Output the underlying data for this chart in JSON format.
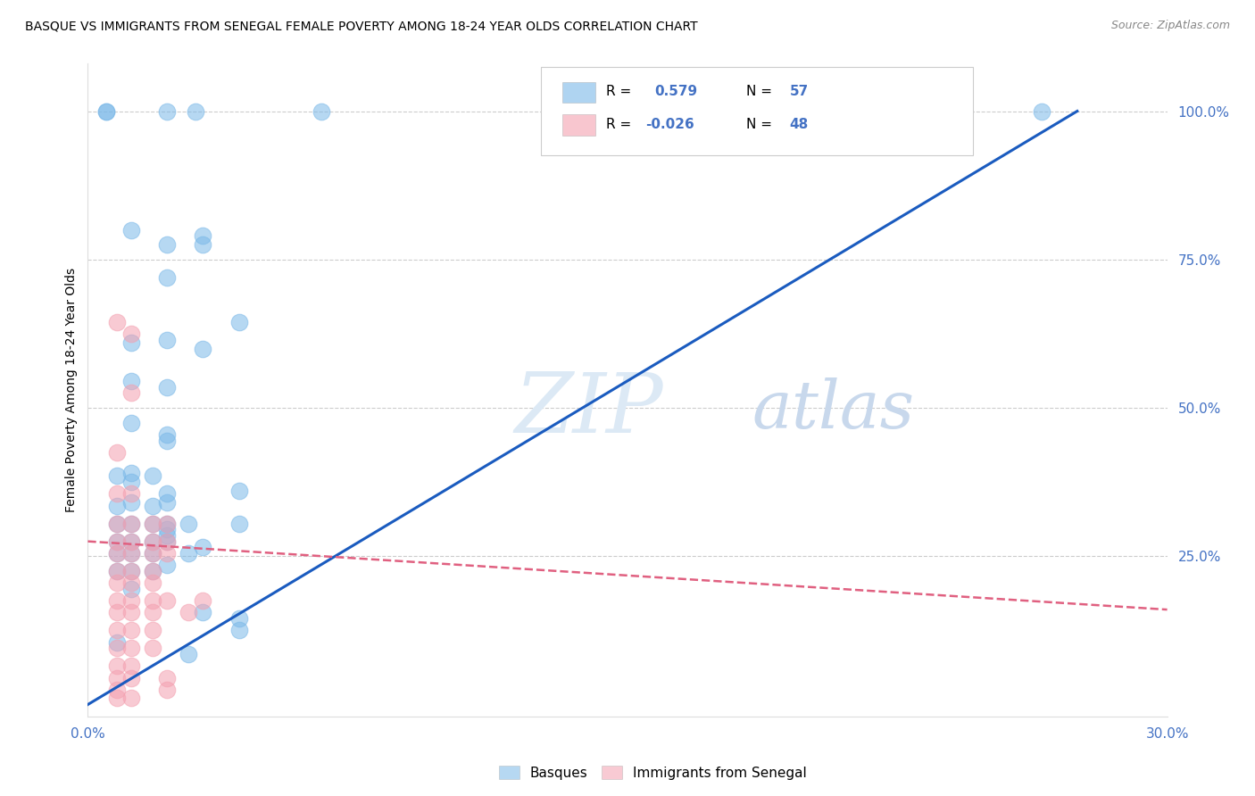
{
  "title": "BASQUE VS IMMIGRANTS FROM SENEGAL FEMALE POVERTY AMONG 18-24 YEAR OLDS CORRELATION CHART",
  "source": "Source: ZipAtlas.com",
  "ylabel": "Female Poverty Among 18-24 Year Olds",
  "xlabel": "",
  "xlim": [
    0.0,
    0.3
  ],
  "ylim": [
    -0.02,
    1.08
  ],
  "xticks": [
    0.0,
    0.05,
    0.1,
    0.15,
    0.2,
    0.25,
    0.3
  ],
  "xticklabels": [
    "0.0%",
    "",
    "",
    "",
    "",
    "",
    "30.0%"
  ],
  "yticks_right": [
    0.25,
    0.5,
    0.75,
    1.0
  ],
  "ytick_labels_right": [
    "25.0%",
    "50.0%",
    "75.0%",
    "100.0%"
  ],
  "basque_color": "#7ab8e8",
  "senegal_color": "#f4a0b0",
  "trendline_basque_color": "#1a5bbf",
  "trendline_senegal_color": "#e06080",
  "legend_R_basque": "R =  0.579",
  "legend_N_basque": "N = 57",
  "legend_R_senegal": "R = -0.026",
  "legend_N_senegal": "N = 48",
  "watermark_zip": "ZIP",
  "watermark_atlas": "atlas",
  "watermark_color_zip": "#d8e8f5",
  "watermark_color_atlas": "#c8d8e8",
  "grid_color": "#cccccc",
  "tick_color": "#4472c4",
  "basque_trendline": [
    [
      0.0,
      0.0
    ],
    [
      0.275,
      1.0
    ]
  ],
  "senegal_trendline": [
    [
      0.0,
      0.275
    ],
    [
      0.3,
      0.16
    ]
  ],
  "basque_points": [
    [
      0.005,
      1.0
    ],
    [
      0.005,
      1.0
    ],
    [
      0.022,
      1.0
    ],
    [
      0.03,
      1.0
    ],
    [
      0.065,
      1.0
    ],
    [
      0.265,
      1.0
    ],
    [
      0.012,
      0.8
    ],
    [
      0.022,
      0.775
    ],
    [
      0.032,
      0.79
    ],
    [
      0.032,
      0.775
    ],
    [
      0.022,
      0.72
    ],
    [
      0.042,
      0.645
    ],
    [
      0.012,
      0.61
    ],
    [
      0.022,
      0.615
    ],
    [
      0.032,
      0.6
    ],
    [
      0.012,
      0.545
    ],
    [
      0.022,
      0.535
    ],
    [
      0.012,
      0.475
    ],
    [
      0.022,
      0.455
    ],
    [
      0.022,
      0.445
    ],
    [
      0.008,
      0.385
    ],
    [
      0.012,
      0.39
    ],
    [
      0.018,
      0.385
    ],
    [
      0.012,
      0.375
    ],
    [
      0.008,
      0.335
    ],
    [
      0.012,
      0.34
    ],
    [
      0.018,
      0.335
    ],
    [
      0.022,
      0.34
    ],
    [
      0.022,
      0.355
    ],
    [
      0.042,
      0.36
    ],
    [
      0.008,
      0.305
    ],
    [
      0.012,
      0.305
    ],
    [
      0.018,
      0.305
    ],
    [
      0.022,
      0.305
    ],
    [
      0.028,
      0.305
    ],
    [
      0.042,
      0.305
    ],
    [
      0.008,
      0.275
    ],
    [
      0.012,
      0.275
    ],
    [
      0.018,
      0.275
    ],
    [
      0.022,
      0.275
    ],
    [
      0.022,
      0.285
    ],
    [
      0.022,
      0.295
    ],
    [
      0.008,
      0.255
    ],
    [
      0.012,
      0.255
    ],
    [
      0.018,
      0.255
    ],
    [
      0.028,
      0.255
    ],
    [
      0.032,
      0.265
    ],
    [
      0.008,
      0.225
    ],
    [
      0.012,
      0.225
    ],
    [
      0.018,
      0.225
    ],
    [
      0.022,
      0.235
    ],
    [
      0.012,
      0.195
    ],
    [
      0.032,
      0.155
    ],
    [
      0.042,
      0.145
    ],
    [
      0.042,
      0.125
    ],
    [
      0.008,
      0.105
    ],
    [
      0.028,
      0.085
    ]
  ],
  "senegal_points": [
    [
      0.008,
      0.645
    ],
    [
      0.012,
      0.625
    ],
    [
      0.012,
      0.525
    ],
    [
      0.008,
      0.425
    ],
    [
      0.008,
      0.355
    ],
    [
      0.012,
      0.355
    ],
    [
      0.008,
      0.305
    ],
    [
      0.012,
      0.305
    ],
    [
      0.018,
      0.305
    ],
    [
      0.022,
      0.305
    ],
    [
      0.008,
      0.275
    ],
    [
      0.012,
      0.275
    ],
    [
      0.018,
      0.275
    ],
    [
      0.022,
      0.275
    ],
    [
      0.008,
      0.255
    ],
    [
      0.012,
      0.255
    ],
    [
      0.018,
      0.255
    ],
    [
      0.022,
      0.255
    ],
    [
      0.008,
      0.225
    ],
    [
      0.012,
      0.225
    ],
    [
      0.018,
      0.225
    ],
    [
      0.008,
      0.205
    ],
    [
      0.012,
      0.205
    ],
    [
      0.018,
      0.205
    ],
    [
      0.008,
      0.175
    ],
    [
      0.012,
      0.175
    ],
    [
      0.018,
      0.175
    ],
    [
      0.022,
      0.175
    ],
    [
      0.032,
      0.175
    ],
    [
      0.008,
      0.155
    ],
    [
      0.012,
      0.155
    ],
    [
      0.018,
      0.155
    ],
    [
      0.028,
      0.155
    ],
    [
      0.008,
      0.125
    ],
    [
      0.012,
      0.125
    ],
    [
      0.018,
      0.125
    ],
    [
      0.008,
      0.095
    ],
    [
      0.012,
      0.095
    ],
    [
      0.018,
      0.095
    ],
    [
      0.008,
      0.065
    ],
    [
      0.012,
      0.065
    ],
    [
      0.008,
      0.045
    ],
    [
      0.012,
      0.045
    ],
    [
      0.022,
      0.045
    ],
    [
      0.008,
      0.025
    ],
    [
      0.022,
      0.025
    ],
    [
      0.008,
      0.012
    ],
    [
      0.012,
      0.012
    ]
  ]
}
